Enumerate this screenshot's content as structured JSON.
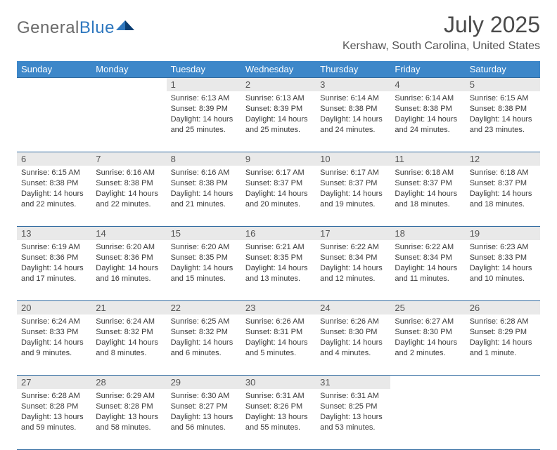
{
  "brand": {
    "part1": "General",
    "part2": "Blue"
  },
  "title": "July 2025",
  "location": "Kershaw, South Carolina, United States",
  "colors": {
    "header_bg": "#3d87c9",
    "header_text": "#ffffff",
    "daynum_bg": "#e9e9e9",
    "rule": "#2f6aa0",
    "brand_blue": "#2f78bf",
    "brand_gray": "#6b6b6b"
  },
  "weekdays": [
    "Sunday",
    "Monday",
    "Tuesday",
    "Wednesday",
    "Thursday",
    "Friday",
    "Saturday"
  ],
  "weeks": [
    [
      null,
      null,
      {
        "n": "1",
        "sunrise": "6:13 AM",
        "sunset": "8:39 PM",
        "daylight": "14 hours and 25 minutes."
      },
      {
        "n": "2",
        "sunrise": "6:13 AM",
        "sunset": "8:39 PM",
        "daylight": "14 hours and 25 minutes."
      },
      {
        "n": "3",
        "sunrise": "6:14 AM",
        "sunset": "8:38 PM",
        "daylight": "14 hours and 24 minutes."
      },
      {
        "n": "4",
        "sunrise": "6:14 AM",
        "sunset": "8:38 PM",
        "daylight": "14 hours and 24 minutes."
      },
      {
        "n": "5",
        "sunrise": "6:15 AM",
        "sunset": "8:38 PM",
        "daylight": "14 hours and 23 minutes."
      }
    ],
    [
      {
        "n": "6",
        "sunrise": "6:15 AM",
        "sunset": "8:38 PM",
        "daylight": "14 hours and 22 minutes."
      },
      {
        "n": "7",
        "sunrise": "6:16 AM",
        "sunset": "8:38 PM",
        "daylight": "14 hours and 22 minutes."
      },
      {
        "n": "8",
        "sunrise": "6:16 AM",
        "sunset": "8:38 PM",
        "daylight": "14 hours and 21 minutes."
      },
      {
        "n": "9",
        "sunrise": "6:17 AM",
        "sunset": "8:37 PM",
        "daylight": "14 hours and 20 minutes."
      },
      {
        "n": "10",
        "sunrise": "6:17 AM",
        "sunset": "8:37 PM",
        "daylight": "14 hours and 19 minutes."
      },
      {
        "n": "11",
        "sunrise": "6:18 AM",
        "sunset": "8:37 PM",
        "daylight": "14 hours and 18 minutes."
      },
      {
        "n": "12",
        "sunrise": "6:18 AM",
        "sunset": "8:37 PM",
        "daylight": "14 hours and 18 minutes."
      }
    ],
    [
      {
        "n": "13",
        "sunrise": "6:19 AM",
        "sunset": "8:36 PM",
        "daylight": "14 hours and 17 minutes."
      },
      {
        "n": "14",
        "sunrise": "6:20 AM",
        "sunset": "8:36 PM",
        "daylight": "14 hours and 16 minutes."
      },
      {
        "n": "15",
        "sunrise": "6:20 AM",
        "sunset": "8:35 PM",
        "daylight": "14 hours and 15 minutes."
      },
      {
        "n": "16",
        "sunrise": "6:21 AM",
        "sunset": "8:35 PM",
        "daylight": "14 hours and 13 minutes."
      },
      {
        "n": "17",
        "sunrise": "6:22 AM",
        "sunset": "8:34 PM",
        "daylight": "14 hours and 12 minutes."
      },
      {
        "n": "18",
        "sunrise": "6:22 AM",
        "sunset": "8:34 PM",
        "daylight": "14 hours and 11 minutes."
      },
      {
        "n": "19",
        "sunrise": "6:23 AM",
        "sunset": "8:33 PM",
        "daylight": "14 hours and 10 minutes."
      }
    ],
    [
      {
        "n": "20",
        "sunrise": "6:24 AM",
        "sunset": "8:33 PM",
        "daylight": "14 hours and 9 minutes."
      },
      {
        "n": "21",
        "sunrise": "6:24 AM",
        "sunset": "8:32 PM",
        "daylight": "14 hours and 8 minutes."
      },
      {
        "n": "22",
        "sunrise": "6:25 AM",
        "sunset": "8:32 PM",
        "daylight": "14 hours and 6 minutes."
      },
      {
        "n": "23",
        "sunrise": "6:26 AM",
        "sunset": "8:31 PM",
        "daylight": "14 hours and 5 minutes."
      },
      {
        "n": "24",
        "sunrise": "6:26 AM",
        "sunset": "8:30 PM",
        "daylight": "14 hours and 4 minutes."
      },
      {
        "n": "25",
        "sunrise": "6:27 AM",
        "sunset": "8:30 PM",
        "daylight": "14 hours and 2 minutes."
      },
      {
        "n": "26",
        "sunrise": "6:28 AM",
        "sunset": "8:29 PM",
        "daylight": "14 hours and 1 minute."
      }
    ],
    [
      {
        "n": "27",
        "sunrise": "6:28 AM",
        "sunset": "8:28 PM",
        "daylight": "13 hours and 59 minutes."
      },
      {
        "n": "28",
        "sunrise": "6:29 AM",
        "sunset": "8:28 PM",
        "daylight": "13 hours and 58 minutes."
      },
      {
        "n": "29",
        "sunrise": "6:30 AM",
        "sunset": "8:27 PM",
        "daylight": "13 hours and 56 minutes."
      },
      {
        "n": "30",
        "sunrise": "6:31 AM",
        "sunset": "8:26 PM",
        "daylight": "13 hours and 55 minutes."
      },
      {
        "n": "31",
        "sunrise": "6:31 AM",
        "sunset": "8:25 PM",
        "daylight": "13 hours and 53 minutes."
      },
      null,
      null
    ]
  ],
  "labels": {
    "sunrise": "Sunrise: ",
    "sunset": "Sunset: ",
    "daylight": "Daylight: "
  }
}
